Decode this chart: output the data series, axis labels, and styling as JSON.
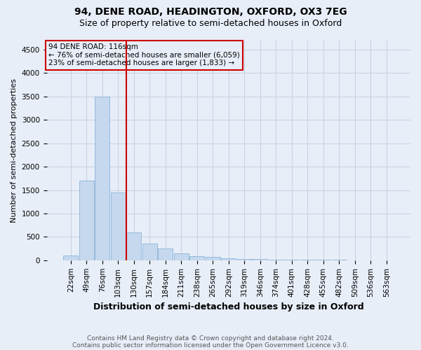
{
  "title1": "94, DENE ROAD, HEADINGTON, OXFORD, OX3 7EG",
  "title2": "Size of property relative to semi-detached houses in Oxford",
  "xlabel": "Distribution of semi-detached houses by size in Oxford",
  "ylabel": "Number of semi-detached properties",
  "footnote1": "Contains HM Land Registry data © Crown copyright and database right 2024.",
  "footnote2": "Contains public sector information licensed under the Open Government Licence v3.0.",
  "annotation_line1": "94 DENE ROAD: 116sqm",
  "annotation_line2": "← 76% of semi-detached houses are smaller (6,059)",
  "annotation_line3": "23% of semi-detached houses are larger (1,833) →",
  "bin_labels": [
    "22sqm",
    "49sqm",
    "76sqm",
    "103sqm",
    "130sqm",
    "157sqm",
    "184sqm",
    "211sqm",
    "238sqm",
    "265sqm",
    "292sqm",
    "319sqm",
    "346sqm",
    "374sqm",
    "401sqm",
    "428sqm",
    "455sqm",
    "482sqm",
    "509sqm",
    "536sqm",
    "563sqm"
  ],
  "bar_heights": [
    100,
    1700,
    3500,
    1450,
    600,
    350,
    250,
    150,
    90,
    65,
    45,
    30,
    22,
    18,
    12,
    9,
    7,
    5,
    4,
    3,
    2
  ],
  "bar_color": "#c5d8ee",
  "bar_edgecolor": "#8ab4d8",
  "property_line_x": 3.5,
  "ylim": [
    0,
    4700
  ],
  "yticks": [
    0,
    500,
    1000,
    1500,
    2000,
    2500,
    3000,
    3500,
    4000,
    4500
  ],
  "annotation_box_color": "#cc0000",
  "grid_color": "#c8d4e4",
  "bg_color": "#e8eef8",
  "title_fontsize": 10,
  "subtitle_fontsize": 9,
  "tick_fontsize": 7.5,
  "ylabel_fontsize": 8,
  "xlabel_fontsize": 9
}
